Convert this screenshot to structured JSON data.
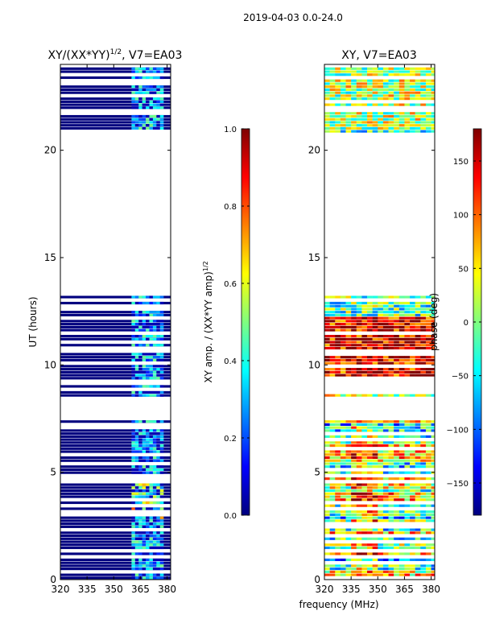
{
  "figure": {
    "suptitle": "2019-04-03 0.0-24.0",
    "shared_xlabel": "frequency (MHz)"
  },
  "chart_data": [
    {
      "type": "heatmap",
      "title": "XY/(XX*YY)",
      "title_superscript": "1/2",
      "title_suffix": ", V7=EA03",
      "xlabel": "",
      "ylabel": "UT (hours)",
      "xlim": [
        320,
        382
      ],
      "ylim": [
        0,
        24
      ],
      "xticks": [
        320,
        335,
        350,
        365,
        380
      ],
      "yticks": [
        0,
        5,
        10,
        15,
        20
      ],
      "colorbar": {
        "label": "XY amp. / (XX*YY amp)",
        "label_superscript": "1/2",
        "range": [
          0.0,
          1.0
        ],
        "ticks": [
          "0.0",
          "0.2",
          "0.4",
          "0.6",
          "0.8",
          "1.0"
        ],
        "tick_values": [
          0.0,
          0.2,
          0.4,
          0.6,
          0.8,
          1.0
        ]
      },
      "colormap": "jet",
      "data_bands_ut_hours": [
        [
          0.0,
          7.4
        ],
        [
          8.5,
          9.0
        ],
        [
          9.3,
          13.2
        ],
        [
          20.8,
          21.7
        ],
        [
          21.9,
          23.8
        ]
      ],
      "data_freq_range_mhz": [
        360,
        377
      ],
      "summary": "Mostly low amplitude (~0.0) across the band; elevated values (0.3-0.8) concentrated between ~360 and ~377 MHz, highest around UT 3-4.5 h."
    },
    {
      "type": "heatmap",
      "title": "XY, V7=EA03",
      "xlabel": "",
      "ylabel": "",
      "xlim": [
        320,
        382
      ],
      "ylim": [
        0,
        24
      ],
      "xticks": [
        320,
        335,
        350,
        365,
        380
      ],
      "yticks": [
        0,
        5,
        10,
        15,
        20
      ],
      "colorbar": {
        "label": "phase (deg)",
        "range": [
          -180,
          180
        ],
        "ticks": [
          "−150",
          "−100",
          "−50",
          "0",
          "50",
          "100",
          "150"
        ],
        "tick_values": [
          -150,
          -100,
          -50,
          0,
          50,
          100,
          150
        ]
      },
      "colormap": "jet",
      "data_bands_ut_hours": [
        [
          0.0,
          7.4
        ],
        [
          8.5,
          9.0
        ],
        [
          9.3,
          13.2
        ],
        [
          20.8,
          21.7
        ],
        [
          21.9,
          23.8
        ]
      ],
      "summary": "Phase varies strongly with UT; near +150 to +180 deg around UT 10-12 h, mixed -150 to +100 elsewhere."
    }
  ]
}
